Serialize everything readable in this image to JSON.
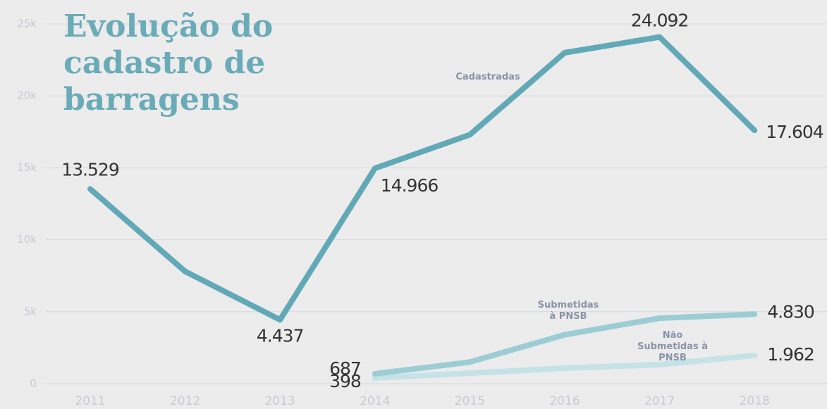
{
  "chart_data": {
    "type": "line",
    "title": "Evolução do cadastro de barragens",
    "categories": [
      "2011",
      "2012",
      "2013",
      "2014",
      "2015",
      "2016",
      "2017",
      "2018"
    ],
    "series": [
      {
        "name": "Cadastradas",
        "color": "#62a9b8",
        "values": [
          13529,
          7800,
          4437,
          14966,
          17300,
          23000,
          24092,
          17604
        ],
        "value_labels": [
          "13.529",
          null,
          "4.437",
          "14.966",
          null,
          null,
          "24.092",
          "17.604"
        ]
      },
      {
        "name": "Submetidas à PNSB",
        "color": "#9ccdd5",
        "values": [
          null,
          null,
          null,
          687,
          1500,
          3400,
          4550,
          4830
        ],
        "value_labels": [
          null,
          null,
          null,
          "687",
          null,
          null,
          null,
          "4.830"
        ]
      },
      {
        "name": "Não Submetidas à PNSB",
        "color": "#c5e2e7",
        "values": [
          null,
          null,
          null,
          398,
          730,
          1080,
          1320,
          1962
        ],
        "value_labels": [
          null,
          null,
          null,
          "398",
          null,
          null,
          null,
          "1.962"
        ]
      }
    ],
    "ylim": [
      0,
      25000
    ],
    "yticks": [
      0,
      {
        "value": 5000,
        "label": "5k"
      },
      {
        "value": 10000,
        "label": "10k"
      },
      {
        "value": 15000,
        "label": "15k"
      },
      {
        "value": 20000,
        "label": "20k"
      },
      {
        "value": 25000,
        "label": "25k"
      }
    ],
    "grid": true
  }
}
